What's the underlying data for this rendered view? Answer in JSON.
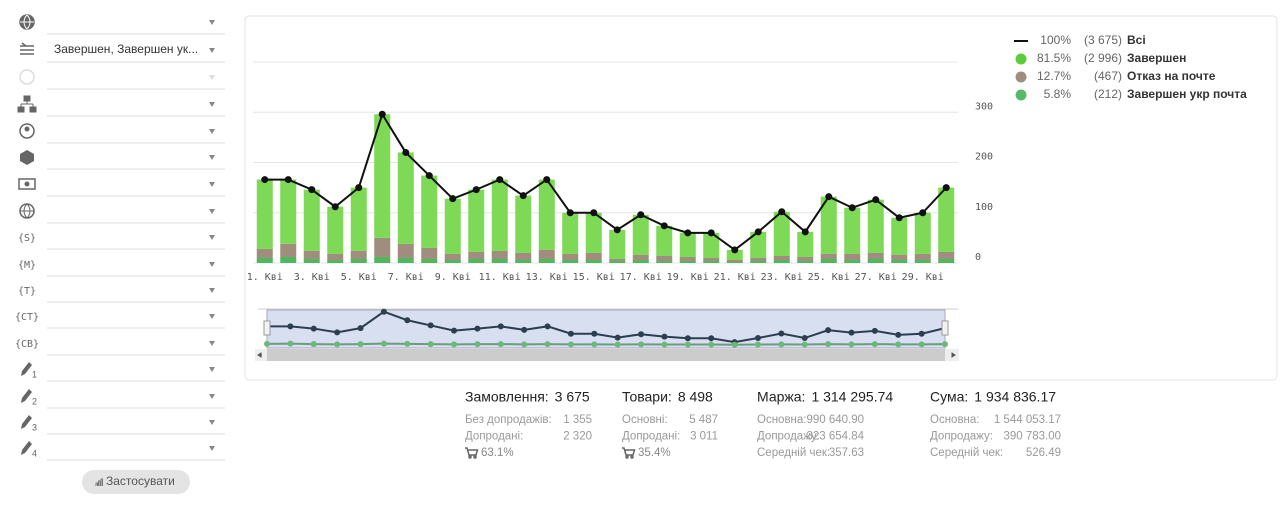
{
  "sidebar": {
    "selected_filter": "Завершен, Завершен ук...",
    "icon_codes": [
      "{S}",
      "{M}",
      "{T}",
      "{CT}",
      "{CB}"
    ],
    "pencil_numbers": [
      1,
      2,
      3,
      4
    ],
    "apply_button": "Застосувати"
  },
  "chart_data": {
    "type": "bar",
    "categories": [
      "1. Кві",
      null,
      "3. Кві",
      null,
      "5. Кві",
      null,
      "7. Кві",
      null,
      "9. Кві",
      null,
      "11. Кві",
      null,
      "13. Кві",
      null,
      "15. Кві",
      null,
      "17. Кві",
      null,
      "19. Кві",
      null,
      "21. Кві",
      null,
      "23. Кві",
      null,
      "25. Кві",
      null,
      "27. Кві",
      null,
      "29. Кві",
      null
    ],
    "series": [
      {
        "name": "Всі",
        "type": "line",
        "color": "#111111",
        "share_label": "100%",
        "count_label": "(3 675)",
        "values": [
          166,
          166,
          146,
          112,
          150,
          296,
          220,
          174,
          128,
          146,
          166,
          134,
          166,
          100,
          100,
          66,
          96,
          74,
          60,
          60,
          26,
          62,
          102,
          62,
          132,
          110,
          126,
          90,
          100,
          150
        ]
      },
      {
        "name": "Завершен",
        "color": "#7ed957",
        "legend_color": "#5ccd3a",
        "share_label": "81.5%",
        "count_label": "(2 996)",
        "values": [
          138,
          128,
          122,
          94,
          126,
          246,
          182,
          144,
          110,
          124,
          142,
          114,
          140,
          82,
          80,
          58,
          80,
          60,
          48,
          50,
          20,
          52,
          88,
          50,
          114,
          92,
          106,
          74,
          82,
          128
        ]
      },
      {
        "name": "Отказ на почте",
        "color": "#a18d7e",
        "legend_color": "#a18d7e",
        "share_label": "12.7%",
        "count_label": "(467)",
        "values": [
          18,
          26,
          16,
          12,
          16,
          38,
          28,
          22,
          12,
          14,
          16,
          14,
          18,
          12,
          14,
          4,
          10,
          10,
          8,
          6,
          4,
          6,
          8,
          8,
          10,
          12,
          12,
          10,
          12,
          14
        ]
      },
      {
        "name": "Завершен укр почта",
        "color": "#4fb85e",
        "legend_color": "#59b96a",
        "share_label": "5.8%",
        "count_label": "(212)",
        "values": [
          10,
          12,
          8,
          6,
          8,
          12,
          10,
          8,
          6,
          8,
          8,
          6,
          8,
          6,
          6,
          4,
          6,
          4,
          4,
          4,
          2,
          4,
          6,
          4,
          8,
          6,
          8,
          6,
          6,
          8
        ]
      }
    ],
    "ylim": [
      0,
      400
    ],
    "yticks": [
      0,
      100,
      200,
      300
    ],
    "grid": true,
    "legend": "right"
  },
  "stats": [
    {
      "title": "Замовлення:",
      "value": "3 675",
      "rows": [
        [
          "Без допродажів:",
          "1 355"
        ],
        [
          "Допродані:",
          "2 320"
        ]
      ],
      "cart": "63.1%"
    },
    {
      "title": "Товари:",
      "value": "8 498",
      "rows": [
        [
          "Основні:",
          "5 487"
        ],
        [
          "Допродані:",
          "3 011"
        ]
      ],
      "cart": "35.4%"
    },
    {
      "title": "Маржа:",
      "value": "1 314 295.74",
      "rows": [
        [
          "Основна:",
          "990 640.90"
        ],
        [
          "Допродажу:",
          "323 654.84"
        ],
        [
          "Середній чек:",
          "357.63"
        ]
      ]
    },
    {
      "title": "Сума:",
      "value": "1 934 836.17",
      "rows": [
        [
          "Основна:",
          "1 544 053.17"
        ],
        [
          "Допродажу:",
          "390 783.00"
        ],
        [
          "Середній чек:",
          "526.49"
        ]
      ]
    }
  ]
}
